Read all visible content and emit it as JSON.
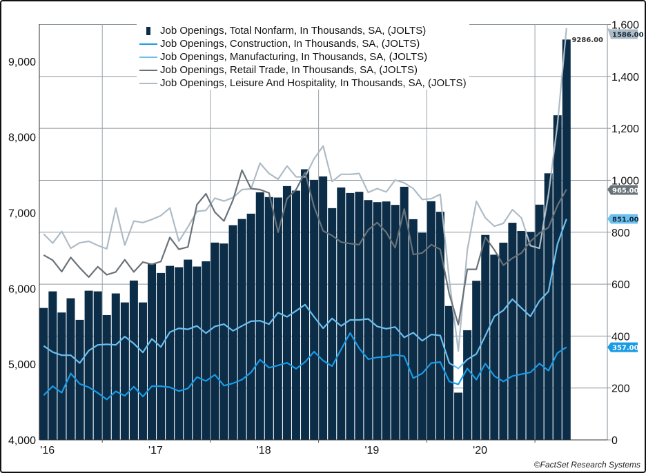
{
  "chart_data": {
    "type": "bar+line",
    "title": "",
    "x_tick_labels": [
      "'16",
      "'17",
      "'18",
      "'19",
      "'20"
    ],
    "left_axis": {
      "ylim": [
        4000,
        9500
      ],
      "ticks": [
        4000,
        5000,
        6000,
        7000,
        8000,
        9000
      ],
      "tick_labels": [
        "4,000",
        "5,000",
        "6,000",
        "7,000",
        "8,000",
        "9,000"
      ]
    },
    "right_axis": {
      "ylim": [
        0,
        1600
      ],
      "ticks": [
        0,
        200,
        400,
        600,
        800,
        1000,
        1200,
        1400,
        1600
      ],
      "tick_labels": [
        "0",
        "200",
        "400",
        "600",
        "800",
        "1,000",
        "1,200",
        "1,400",
        "1,600"
      ]
    },
    "grid": true,
    "legend_position": "top",
    "series": [
      {
        "name": "Job Openings, Total Nonfarm, In Thousands, SA, (JOLTS)",
        "type": "bar",
        "axis": "left",
        "color": "#0c2d48",
        "last_label": "9286.00",
        "values": [
          5742,
          5961,
          5682,
          5870,
          5585,
          5970,
          5961,
          5648,
          5934,
          5815,
          6104,
          5815,
          6329,
          6204,
          6298,
          6280,
          6380,
          6289,
          6358,
          6605,
          6593,
          6835,
          6917,
          6987,
          7269,
          7206,
          7200,
          7351,
          7291,
          7573,
          7433,
          7479,
          7060,
          7333,
          7260,
          7276,
          7166,
          7139,
          7148,
          7103,
          7342,
          6914,
          6735,
          7151,
          7012,
          5768,
          4624,
          5448,
          6101,
          6706,
          6445,
          6604,
          6867,
          6758,
          6747,
          7106,
          7520,
          8286,
          9286
        ]
      },
      {
        "name": "Job Openings, Construction, In Thousands, SA, (JOLTS)",
        "type": "line",
        "axis": "right",
        "color": "#1a9be6",
        "last_label": "357.00",
        "values": [
          172,
          207,
          182,
          256,
          216,
          203,
          181,
          156,
          187,
          170,
          205,
          167,
          207,
          207,
          203,
          188,
          198,
          242,
          227,
          251,
          209,
          218,
          232,
          260,
          309,
          278,
          287,
          297,
          274,
          300,
          340,
          305,
          284,
          349,
          412,
          353,
          311,
          318,
          320,
          328,
          322,
          238,
          256,
          296,
          300,
          225,
          214,
          275,
          232,
          294,
          246,
          225,
          246,
          253,
          260,
          294,
          267,
          335,
          357
        ]
      },
      {
        "name": "Job Openings, Manufacturing, In Thousands, SA, (JOLTS)",
        "type": "line",
        "axis": "right",
        "color": "#6cc0f0",
        "last_label": "851.00",
        "values": [
          362,
          338,
          326,
          326,
          296,
          344,
          366,
          368,
          366,
          398,
          371,
          337,
          389,
          358,
          415,
          430,
          426,
          439,
          411,
          437,
          446,
          420,
          439,
          457,
          459,
          446,
          490,
          474,
          497,
          521,
          474,
          430,
          468,
          439,
          462,
          462,
          466,
          437,
          428,
          435,
          395,
          413,
          382,
          406,
          402,
          296,
          275,
          310,
          331,
          401,
          476,
          499,
          542,
          508,
          476,
          535,
          572,
          754,
          851
        ]
      },
      {
        "name": "Job Openings, Retail Trade, In Thousands, SA, (JOLTS)",
        "type": "line",
        "axis": "right",
        "color": "#687278",
        "last_label": "965.00",
        "values": [
          712,
          692,
          648,
          703,
          663,
          627,
          667,
          636,
          647,
          694,
          647,
          685,
          676,
          687,
          780,
          734,
          743,
          906,
          948,
          877,
          843,
          924,
          1039,
          968,
          964,
          951,
          800,
          929,
          964,
          1030,
          898,
          805,
          787,
          762,
          756,
          752,
          809,
          837,
          800,
          740,
          889,
          714,
          720,
          752,
          734,
          561,
          444,
          657,
          657,
          780,
          732,
          673,
          700,
          720,
          764,
          797,
          818,
          903,
          965
        ]
      },
      {
        "name": "Job Openings, Leisure And Hospitality, In Thousands, SA, (JOLTS)",
        "type": "line",
        "axis": "right",
        "color": "#aebbc5",
        "last_label": "1586.00",
        "values": [
          793,
          758,
          803,
          738,
          759,
          765,
          749,
          736,
          893,
          750,
          843,
          837,
          849,
          864,
          893,
          765,
          820,
          880,
          884,
          931,
          920,
          933,
          964,
          967,
          1066,
          1026,
          1004,
          1055,
          1013,
          1013,
          1083,
          1132,
          995,
          1023,
          1023,
          1026,
          953,
          968,
          955,
          1001,
          990,
          968,
          926,
          929,
          946,
          615,
          342,
          732,
          919,
          855,
          823,
          834,
          887,
          855,
          748,
          738,
          946,
          1214,
          1586
        ]
      }
    ]
  },
  "footer": "©FactSet Research Systems"
}
